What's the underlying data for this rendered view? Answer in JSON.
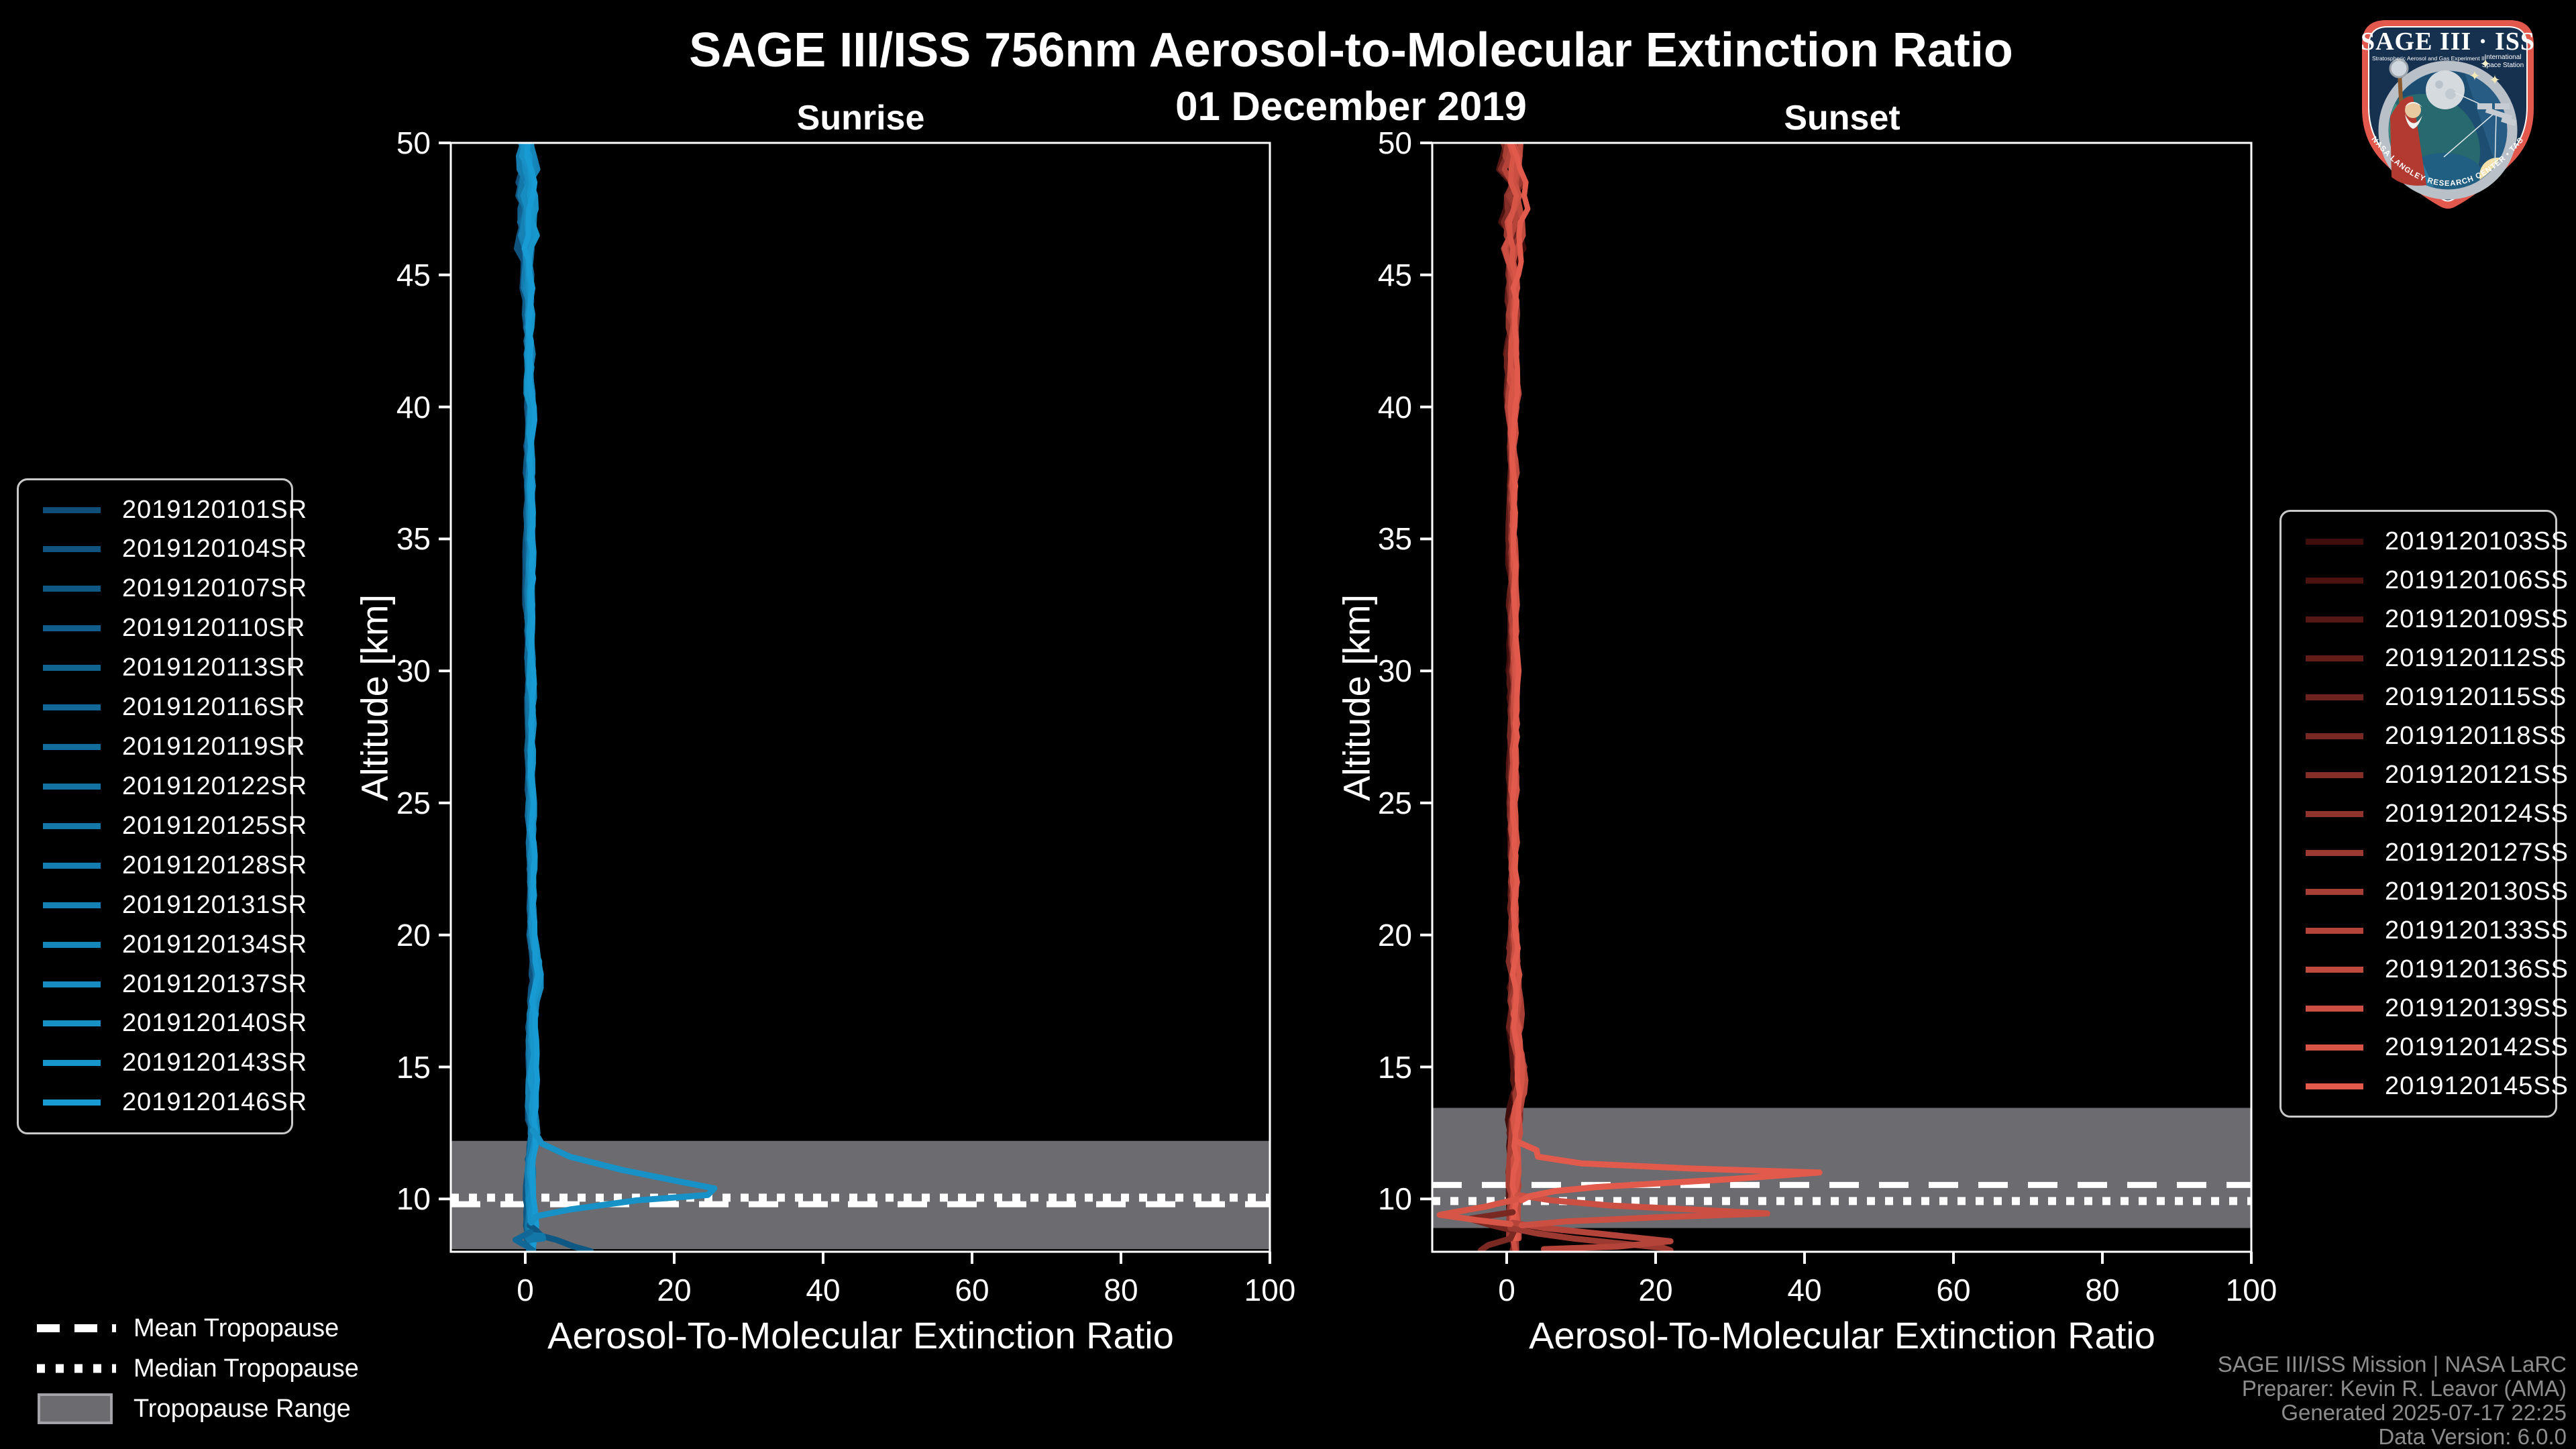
{
  "header": {
    "title": "SAGE III/ISS 756nm Aerosol-to-Molecular Extinction Ratio",
    "date": "01 December 2019"
  },
  "logo": {
    "title": "SAGE III · ISS",
    "subtitle_left": "Stratospheric Aerosol and Gas Experiment III",
    "subtitle_right_1": "International",
    "subtitle_right_2": "Space Station",
    "ring_text": "BALL • NASA LANGLEY RESEARCH CENTER • TAS-I • ESA"
  },
  "colors": {
    "background": "#000000",
    "axis": "#ffffff",
    "band": "#6b6b70",
    "band_edge": "#a2a2a8",
    "legend_border": "#c9c9c9",
    "footer_text": "#8d8d8d"
  },
  "tropopause_legend": {
    "mean": "Mean Tropopause",
    "median": "Median Tropopause",
    "range": "Tropopause Range"
  },
  "footer": {
    "lines": [
      "SAGE III/ISS Mission | NASA LaRC",
      "Preparer: Kevin R. Leavor (AMA)",
      "Generated 2025-07-17 22:25",
      "Data Version: 6.0.0"
    ]
  },
  "chart_data": [
    {
      "type": "line",
      "title": "Sunrise",
      "xlabel": "Aerosol-To-Molecular Extinction Ratio",
      "ylabel": "Altitude [km]",
      "xlim": [
        -10,
        100
      ],
      "ylim": [
        8,
        50
      ],
      "xticks": [
        0,
        20,
        40,
        60,
        80,
        100
      ],
      "yticks": [
        10,
        15,
        20,
        25,
        30,
        35,
        40,
        45,
        50
      ],
      "series_ids": [
        "2019120101SR",
        "2019120104SR",
        "2019120107SR",
        "2019120110SR",
        "2019120113SR",
        "2019120116SR",
        "2019120119SR",
        "2019120122SR",
        "2019120125SR",
        "2019120128SR",
        "2019120131SR",
        "2019120134SR",
        "2019120137SR",
        "2019120140SR",
        "2019120143SR",
        "2019120146SR"
      ],
      "series_colors": [
        "#0e4e78",
        "#0f537e",
        "#0f5884",
        "#105d8a",
        "#116390",
        "#116896",
        "#126d9c",
        "#1372a2",
        "#1377a8",
        "#147cae",
        "#1581b4",
        "#1586ba",
        "#168cc0",
        "#1791c6",
        "#1796cc",
        "#189bd2"
      ],
      "bundle": {
        "alts": [
          8,
          9,
          10,
          11.5,
          12.3,
          13,
          16,
          17.5,
          18.3,
          19,
          20,
          25,
          30,
          40,
          46,
          50
        ],
        "vals": [
          0.8,
          0.7,
          0.6,
          0.8,
          1.2,
          0.9,
          0.8,
          1.1,
          1.6,
          1.5,
          0.9,
          0.7,
          0.65,
          0.55,
          0.4,
          0.2
        ],
        "noise": [
          [
            46,
            50.5,
            1.0
          ],
          [
            40,
            46,
            0.45
          ],
          [
            20,
            40,
            0.3
          ],
          [
            16,
            20,
            0.45
          ],
          [
            8,
            16,
            0.45
          ]
        ]
      },
      "features": [
        {
          "color": "#0f5884",
          "points_val_alt": [
            [
              0.6,
              9.0
            ],
            [
              1.5,
              8.8
            ],
            [
              2.2,
              8.6
            ],
            [
              4.2,
              8.45
            ],
            [
              6.5,
              8.2
            ],
            [
              8.8,
              8.02
            ]
          ]
        },
        {
          "color": "#1377a8",
          "points_val_alt": [
            [
              0.2,
              8.65
            ],
            [
              2.3,
              8.6
            ],
            [
              2.4,
              8.5
            ],
            [
              0.5,
              8.45
            ]
          ]
        },
        {
          "color": "#116896",
          "points_val_alt": [
            [
              0.7,
              8.75
            ],
            [
              -1.3,
              8.45
            ],
            [
              0.3,
              8.2
            ],
            [
              1.0,
              8.05
            ]
          ]
        },
        {
          "color": "#1791c6",
          "points_val_alt": [
            [
              1.0,
              12.6
            ],
            [
              1.8,
              12.3
            ],
            [
              2.2,
              12.1
            ],
            [
              6,
              11.6
            ],
            [
              13,
              11.1
            ],
            [
              20,
              10.7
            ],
            [
              25.4,
              10.4
            ],
            [
              24.5,
              10.15
            ],
            [
              15,
              9.95
            ],
            [
              6,
              9.6
            ],
            [
              1.5,
              9.35
            ],
            [
              0.8,
              9.1
            ]
          ]
        }
      ],
      "tropopause": {
        "mean_km": 9.8,
        "median_km": 10.05,
        "range_km": [
          8.1,
          12.2
        ]
      }
    },
    {
      "type": "line",
      "title": "Sunset",
      "xlabel": "Aerosol-To-Molecular Extinction Ratio",
      "ylabel": "Altitude [km]",
      "xlim": [
        -10,
        100
      ],
      "ylim": [
        8,
        50
      ],
      "xticks": [
        0,
        20,
        40,
        60,
        80,
        100
      ],
      "yticks": [
        10,
        15,
        20,
        25,
        30,
        35,
        40,
        45,
        50
      ],
      "series_ids": [
        "2019120103SS",
        "2019120106SS",
        "2019120109SS",
        "2019120112SS",
        "2019120115SS",
        "2019120118SS",
        "2019120121SS",
        "2019120124SS",
        "2019120127SS",
        "2019120130SS",
        "2019120133SS",
        "2019120136SS",
        "2019120139SS",
        "2019120142SS",
        "2019120145SS"
      ],
      "series_colors": [
        "#3f0d0b",
        "#4b1210",
        "#561814",
        "#621d19",
        "#6e231e",
        "#792822",
        "#852e27",
        "#91342c",
        "#9c3930",
        "#a83f35",
        "#b4443a",
        "#bf4a3e",
        "#cb4f43",
        "#d65547",
        "#e25a4c"
      ],
      "bundle": {
        "alts": [
          8,
          9,
          10,
          11,
          12.5,
          13.8,
          14.8,
          16,
          20,
          25,
          30,
          40,
          46,
          50
        ],
        "vals": [
          0.9,
          0.9,
          0.85,
          0.9,
          1.0,
          1.3,
          1.9,
          1.1,
          0.9,
          0.85,
          0.85,
          0.8,
          0.8,
          0.7
        ],
        "noise": [
          [
            46,
            50.5,
            1.3
          ],
          [
            40,
            46,
            0.6
          ],
          [
            20,
            40,
            0.35
          ],
          [
            13,
            20,
            0.6
          ],
          [
            8,
            13,
            0.55
          ]
        ]
      },
      "features": [
        {
          "color": "#792822",
          "points_val_alt": [
            [
              0.8,
              9.5
            ],
            [
              -5,
              9.25
            ],
            [
              -2,
              9.0
            ],
            [
              1,
              8.8
            ],
            [
              0.5,
              8.5
            ],
            [
              -2.5,
              8.25
            ],
            [
              -3.5,
              8.05
            ]
          ]
        },
        {
          "color": "#9c3930",
          "points_val_alt": [
            [
              0.5,
              8.9
            ],
            [
              4,
              8.7
            ],
            [
              9,
              8.5
            ],
            [
              14,
              8.35
            ],
            [
              21,
              8.15
            ],
            [
              22,
              8.05
            ]
          ]
        },
        {
          "color": "#b4443a",
          "points_val_alt": [
            [
              0.8,
              9.1
            ],
            [
              5,
              8.9
            ],
            [
              12,
              8.7
            ],
            [
              22,
              8.4
            ],
            [
              15,
              8.2
            ],
            [
              5,
              8.1
            ]
          ]
        },
        {
          "color": "#cb4f43",
          "points_val_alt": [
            [
              1.5,
              10.15
            ],
            [
              6,
              9.95
            ],
            [
              14,
              9.75
            ],
            [
              25,
              9.6
            ],
            [
              35,
              9.45
            ],
            [
              20,
              9.3
            ],
            [
              8,
              9.15
            ],
            [
              2,
              9.0
            ]
          ]
        },
        {
          "color": "#d65547",
          "points_val_alt": [
            [
              1.5,
              10.0
            ],
            [
              -3,
              9.7
            ],
            [
              -9,
              9.4
            ],
            [
              -4,
              9.2
            ],
            [
              0.5,
              9.05
            ]
          ]
        },
        {
          "color": "#e25a4c",
          "points_val_alt": [
            [
              1.2,
              12.2
            ],
            [
              4.0,
              11.85
            ],
            [
              4.2,
              11.6
            ],
            [
              10,
              11.35
            ],
            [
              25,
              11.15
            ],
            [
              42,
              11.0
            ],
            [
              30,
              10.75
            ],
            [
              12,
              10.45
            ],
            [
              6.5,
              10.3
            ],
            [
              3,
              10.1
            ],
            [
              2,
              9.95
            ]
          ]
        }
      ],
      "tropopause": {
        "mean_km": 10.53,
        "median_km": 9.92,
        "range_km": [
          8.9,
          13.45
        ]
      }
    }
  ]
}
